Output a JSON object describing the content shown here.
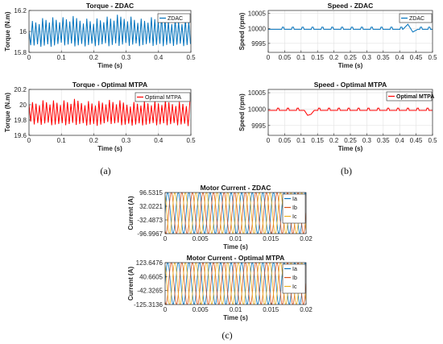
{
  "colors": {
    "blue": "#0072BD",
    "red": "#FF0000",
    "ia": "#0072BD",
    "ib": "#D95319",
    "ic": "#EDB120"
  },
  "captions": [
    "(a)",
    "(b)",
    "(c)"
  ],
  "chart_data": [
    {
      "type": "line",
      "title": "Torque - ZDAC",
      "xlabel": "Time (s)",
      "ylabel": "Torque (N.m)",
      "xlim": [
        0,
        0.5
      ],
      "ylim": [
        15.8,
        16.2
      ],
      "xticks": [
        0,
        0.1,
        0.2,
        0.3,
        0.4,
        0.5
      ],
      "xtick_labels": [
        "0",
        "0.1",
        "0.2",
        "0.3",
        "0.4",
        "0.5"
      ],
      "yticks": [
        15.8,
        16,
        16.2
      ],
      "ytick_labels": [
        "15.8",
        "16",
        "16.2"
      ],
      "grid": true,
      "legend_position": "top-right",
      "series": [
        {
          "name": "ZDAC",
          "color": "#0072BD",
          "x": [
            0,
            0.01,
            0.05,
            0.1,
            0.15,
            0.2,
            0.25,
            0.3,
            0.35,
            0.4,
            0.45,
            0.5
          ],
          "y_max": [
            16.0,
            16.12,
            16.15,
            16.14,
            16.15,
            16.13,
            16.15,
            16.17,
            16.13,
            16.15,
            16.13,
            16.12
          ],
          "y_min": [
            15.88,
            15.85,
            15.85,
            15.86,
            15.85,
            15.86,
            15.85,
            15.86,
            15.86,
            15.85,
            15.86,
            15.86
          ],
          "ripple_period_s": 0.0105
        }
      ]
    },
    {
      "type": "line",
      "title": "Torque - Optimal MTPA",
      "xlabel": "Time (s)",
      "ylabel": "Torque (N.m)",
      "xlim": [
        0,
        0.5
      ],
      "ylim": [
        19.6,
        20.2
      ],
      "xticks": [
        0,
        0.1,
        0.2,
        0.3,
        0.4,
        0.5
      ],
      "xtick_labels": [
        "0",
        "0.1",
        "0.2",
        "0.3",
        "0.4",
        "0.5"
      ],
      "yticks": [
        19.6,
        19.8,
        20,
        20.2
      ],
      "ytick_labels": [
        "19.6",
        "19.8",
        "20",
        "20.2"
      ],
      "grid": true,
      "legend_position": "top-right",
      "series": [
        {
          "name": "Optimal MTPA",
          "color": "#FF0000",
          "x": [
            0,
            0.01,
            0.05,
            0.1,
            0.15,
            0.2,
            0.25,
            0.3,
            0.35,
            0.4,
            0.45,
            0.5
          ],
          "y_max": [
            20.0,
            20.06,
            20.08,
            20.06,
            20.08,
            20.06,
            20.07,
            20.05,
            20.06,
            20.05,
            20.06,
            20.05
          ],
          "y_min": [
            19.84,
            19.72,
            19.74,
            19.72,
            19.73,
            19.72,
            19.74,
            19.72,
            19.73,
            19.72,
            19.73,
            19.72
          ],
          "ripple_period_s": 0.0108
        }
      ]
    },
    {
      "type": "line",
      "title": "Speed - ZDAC",
      "xlabel": "Time (s)",
      "ylabel": "Speed (rpm)",
      "xlim": [
        0,
        0.5
      ],
      "ylim": [
        9992,
        10006
      ],
      "xticks": [
        0,
        0.05,
        0.1,
        0.15,
        0.2,
        0.25,
        0.3,
        0.35,
        0.4,
        0.45,
        0.5
      ],
      "xtick_labels": [
        "0",
        "0.05",
        "0.1",
        "0.15",
        "0.2",
        "0.25",
        "0.3",
        "0.35",
        "0.4",
        "0.45",
        "0.5"
      ],
      "yticks": [
        9995,
        10000,
        10005
      ],
      "ytick_labels": [
        "9995",
        "10000",
        "10005"
      ],
      "grid": true,
      "legend_position": "top-right",
      "series": [
        {
          "name": "ZDAC",
          "color": "#0072BD",
          "baseline": 9999.7,
          "bump": 10000.4,
          "bump_times": [
            0.045,
            0.075,
            0.105,
            0.135,
            0.165,
            0.195,
            0.225,
            0.255,
            0.285,
            0.315,
            0.345,
            0.375,
            0.405,
            0.465,
            0.49
          ],
          "disturbance": {
            "x": [
              0.41,
              0.425,
              0.44,
              0.455
            ],
            "y": [
              9999.7,
              10001.4,
              9998.8,
              9999.7
            ]
          }
        }
      ]
    },
    {
      "type": "line",
      "title": "Speed - Optimal MTPA",
      "xlabel": "Time (s)",
      "ylabel": "Speed (rpm)",
      "xlim": [
        0,
        0.5
      ],
      "ylim": [
        9992,
        10006
      ],
      "xticks": [
        0,
        0.05,
        0.1,
        0.15,
        0.2,
        0.25,
        0.3,
        0.35,
        0.4,
        0.45,
        0.5
      ],
      "xtick_labels": [
        "0",
        "0.05",
        "0.1",
        "0.15",
        "0.2",
        "0.25",
        "0.3",
        "0.35",
        "0.4",
        "0.45",
        "0.5"
      ],
      "yticks": [
        9995,
        10000,
        10005
      ],
      "ytick_labels": [
        "9995",
        "10000",
        "10005"
      ],
      "grid": true,
      "legend_position": "top-right",
      "series": [
        {
          "name": "Optimal MTPA",
          "color": "#FF0000",
          "baseline": 9999.6,
          "bump": 10000.3,
          "bump_times": [
            0.03,
            0.06,
            0.09,
            0.155,
            0.185,
            0.215,
            0.245,
            0.275,
            0.305,
            0.335,
            0.365,
            0.395,
            0.425,
            0.455,
            0.485
          ],
          "disturbance": {
            "x": [
              0.11,
              0.12,
              0.13,
              0.14
            ],
            "y": [
              9999.6,
              9998.1,
              9998.4,
              9999.6
            ]
          }
        }
      ]
    },
    {
      "type": "line",
      "title": "Motor Current - ZDAC",
      "xlabel": "Time (s)",
      "ylabel": "Current (A)",
      "xlim": [
        0,
        0.02
      ],
      "ylim": [
        -96.9967,
        96.5315
      ],
      "xticks": [
        0,
        0.005,
        0.01,
        0.015,
        0.02
      ],
      "xtick_labels": [
        "0",
        "0.005",
        "0.01",
        "0.015",
        "0.02"
      ],
      "yticks": [
        -96.9967,
        -32.4873,
        32.0221,
        96.5315
      ],
      "ytick_labels": [
        "-96.9967",
        "-32.4873",
        "32.0221",
        "96.5315"
      ],
      "grid": true,
      "legend_position": "top-right",
      "series": [
        {
          "name": "Ia",
          "color": "#0072BD",
          "peak": 96.5,
          "frequency_hz": 666.7,
          "phase_deg": 0
        },
        {
          "name": "Ib",
          "color": "#D95319",
          "peak": 96.5,
          "frequency_hz": 666.7,
          "phase_deg": -120
        },
        {
          "name": "Ic",
          "color": "#EDB120",
          "peak": 96.5,
          "frequency_hz": 666.7,
          "phase_deg": 120
        }
      ]
    },
    {
      "type": "line",
      "title": "Motor Current - Optimal MTPA",
      "xlabel": "Time (s)",
      "ylabel": "Current (A)",
      "xlim": [
        0,
        0.02
      ],
      "ylim": [
        -125.3136,
        123.6476
      ],
      "xticks": [
        0,
        0.005,
        0.01,
        0.015,
        0.02
      ],
      "xtick_labels": [
        "0",
        "0.005",
        "0.01",
        "0.015",
        "0.02"
      ],
      "yticks": [
        -125.3136,
        -42.3265,
        40.6605,
        123.6476
      ],
      "ytick_labels": [
        "-125.3136",
        "-42.3265",
        "40.6605",
        "123.6476"
      ],
      "grid": true,
      "legend_position": "top-right",
      "series": [
        {
          "name": "Ia",
          "color": "#0072BD",
          "peak": 123.6,
          "frequency_hz": 666.7,
          "phase_deg": 0
        },
        {
          "name": "Ib",
          "color": "#D95319",
          "peak": 123.6,
          "frequency_hz": 666.7,
          "phase_deg": -120
        },
        {
          "name": "Ic",
          "color": "#EDB120",
          "peak": 123.6,
          "frequency_hz": 666.7,
          "phase_deg": 120
        }
      ]
    }
  ]
}
